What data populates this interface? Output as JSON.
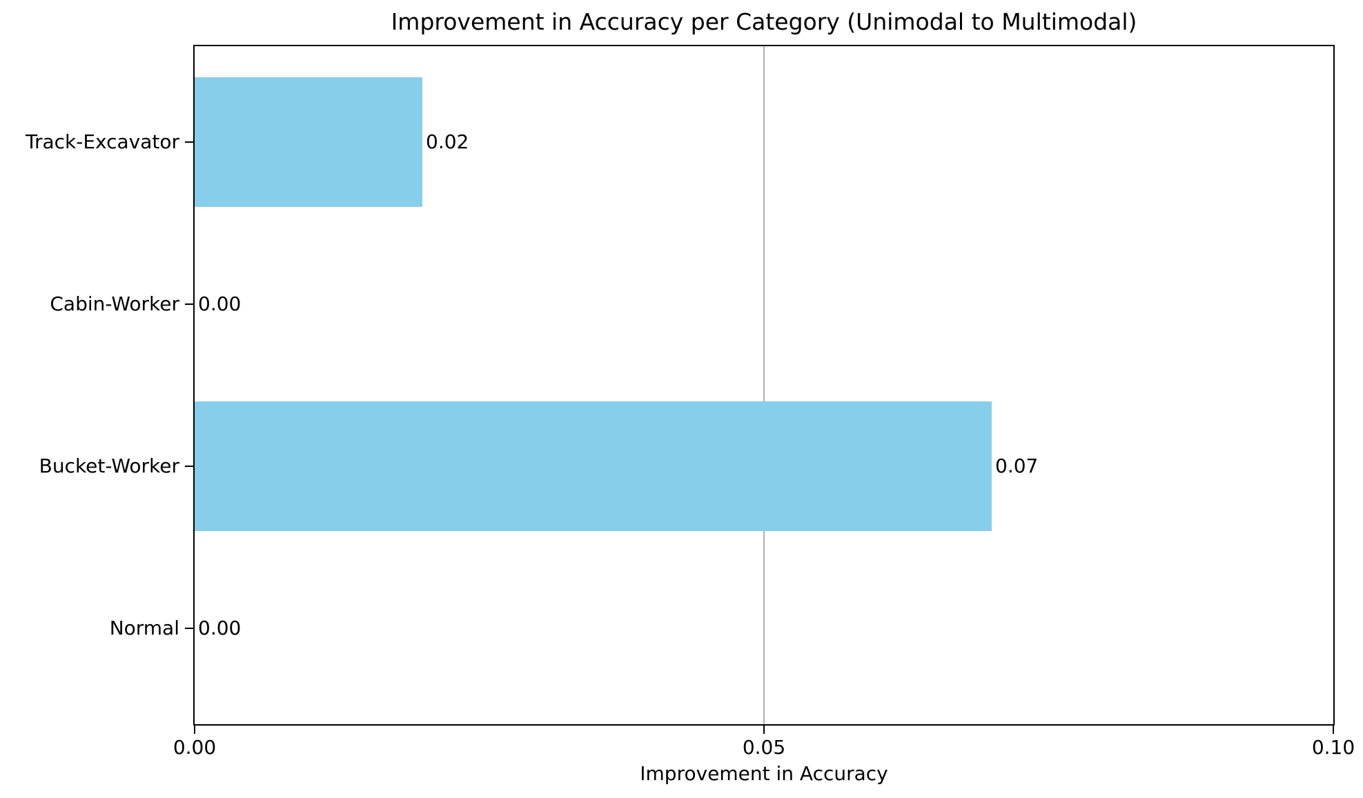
{
  "chart_data": {
    "type": "bar",
    "orientation": "horizontal",
    "title": "Improvement in Accuracy per Category (Unimodal to Multimodal)",
    "xlabel": "Improvement in Accuracy",
    "ylabel": "",
    "categories_top_to_bottom": [
      "Track-Excavator",
      "Cabin-Worker",
      "Bucket-Worker",
      "Normal"
    ],
    "values": [
      0.02,
      0.0,
      0.07,
      0.0
    ],
    "value_labels": [
      "0.02",
      "0.00",
      "0.07",
      "0.00"
    ],
    "xlim": [
      0.0,
      0.1
    ],
    "xticks": [
      {
        "value": 0.0,
        "label": "0.00"
      },
      {
        "value": 0.05,
        "label": "0.05"
      },
      {
        "value": 0.1,
        "label": "0.10"
      }
    ],
    "grid": "vertical-line-at-inner-xticks-only",
    "legend": "none",
    "bar_color": "#87CEEB",
    "grid_color": "#b0b0b0",
    "spine_color": "#000000",
    "text_color": "#000000",
    "background_color": "#ffffff"
  }
}
